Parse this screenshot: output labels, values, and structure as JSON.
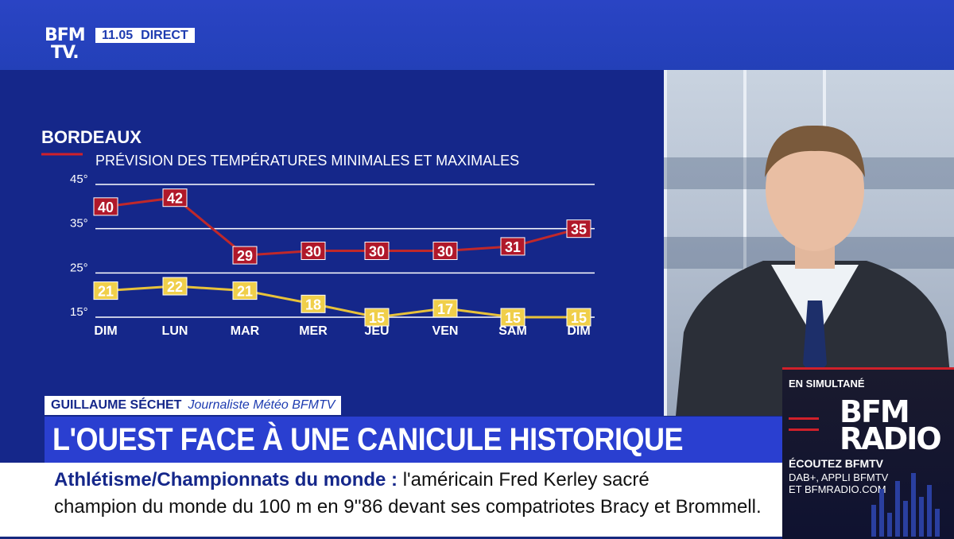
{
  "channel": {
    "logo_line1": "BFM",
    "logo_line2": "TV.",
    "time": "11.05",
    "live": "DIRECT"
  },
  "chart_data": {
    "type": "line",
    "title": "BORDEAUX",
    "subtitle": "PRÉVISION DES TEMPÉRATURES MINIMALES ET MAXIMALES",
    "categories": [
      "DIM",
      "LUN",
      "MAR",
      "MER",
      "JEU",
      "VEN",
      "SAM",
      "DIM"
    ],
    "y_ticks": [
      "45°",
      "35°",
      "25°",
      "15°"
    ],
    "y_tick_values": [
      45,
      35,
      25,
      15
    ],
    "ylim": [
      15,
      45
    ],
    "grid": true,
    "series": [
      {
        "values": [
          40,
          42,
          29,
          30,
          30,
          30,
          31,
          35
        ],
        "color": "#c0282a",
        "label_bg": "#b0182a"
      },
      {
        "values": [
          21,
          22,
          21,
          18,
          15,
          17,
          15,
          15
        ],
        "color": "#e8c23a",
        "label_bg": "#f0cf4a"
      }
    ]
  },
  "presenter": {
    "name": "GUILLAUME SÉCHET",
    "role": "Journaliste Météo BFMTV"
  },
  "headline": "L'OUEST FACE À UNE CANICULE HISTORIQUE",
  "ticker": {
    "topic": "Athlétisme/Championnats du monde",
    "separator": ":",
    "line1": "l'américain Fred Kerley sacré",
    "line2": "champion du monde du 100 m en 9''86 devant ses compatriotes Bracy et Brommell."
  },
  "radio": {
    "simulcast": "EN SIMULTANÉ",
    "logo_line1": "BFM",
    "logo_line2": "RADIO",
    "listen": "ÉCOUTEZ BFMTV",
    "dab": "DAB+, APPLI BFMTV",
    "site": "ET BFMRADIO.COM"
  },
  "colors": {
    "brand_blue": "#2a3fd0",
    "panel_blue": "#15278a",
    "max_red": "#c0282a",
    "min_yellow": "#e8c23a"
  }
}
